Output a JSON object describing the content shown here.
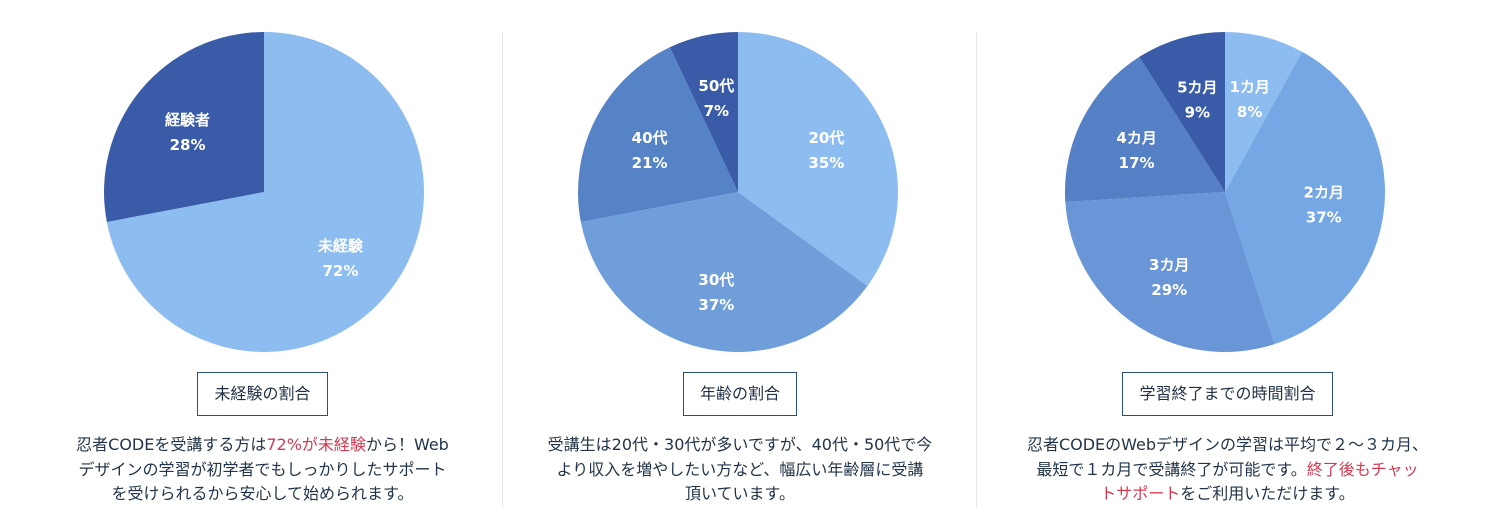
{
  "colors": {
    "caption_border": "#2f4f7a",
    "highlight": "#d43a50",
    "label_text": "#ffffff"
  },
  "panels": [
    {
      "caption": "未経験の割合",
      "description": {
        "line1_a": "忍者CODEを受講する方は",
        "line1_hl": "72%が未経験",
        "line1_b": "から！Web",
        "line2": "デザインの学習が初学者でもしっかりしたサポート",
        "line3": "を受けられるから安心して始められます。"
      }
    },
    {
      "caption": "年齢の割合",
      "description": {
        "line1": "受講生は20代・30代が多いですが、40代・50代で今",
        "line2": "より収入を増やしたい方など、幅広い年齢層に受講",
        "line3": "頂いています。"
      }
    },
    {
      "caption": "学習終了までの時間割合",
      "description": {
        "line1": "忍者CODEのWebデザインの学習は平均で２〜３カ月、",
        "line2_a": "最短で１カ月で受講終了が可能です。",
        "line2_hl": "終了後もチャッ",
        "line3_hl": "トサポート",
        "line3_b": "をご利用いただけます。"
      }
    }
  ],
  "chart_data": [
    {
      "type": "pie",
      "labels": [
        "未経験",
        "経験者"
      ],
      "values": [
        72,
        28
      ],
      "value_labels": [
        "72%",
        "28%"
      ],
      "colors": [
        "#8dbdf0",
        "#3a5ca8"
      ]
    },
    {
      "type": "pie",
      "labels": [
        "20代",
        "30代",
        "40代",
        "50代"
      ],
      "values": [
        35,
        37,
        21,
        7
      ],
      "value_labels": [
        "35%",
        "37%",
        "21%",
        "7%"
      ],
      "colors": [
        "#8dbdf0",
        "#6f9edb",
        "#5682c6",
        "#3a5ca8"
      ]
    },
    {
      "type": "pie",
      "labels": [
        "1カ月",
        "2カ月",
        "3カ月",
        "4カ月",
        "5カ月"
      ],
      "values": [
        8,
        37,
        29,
        17,
        9
      ],
      "value_labels": [
        "8%",
        "37%",
        "29%",
        "17%",
        "9%"
      ],
      "colors": [
        "#8dbdf0",
        "#75a7e4",
        "#6a95d6",
        "#5580c5",
        "#3a5ca8"
      ]
    }
  ]
}
